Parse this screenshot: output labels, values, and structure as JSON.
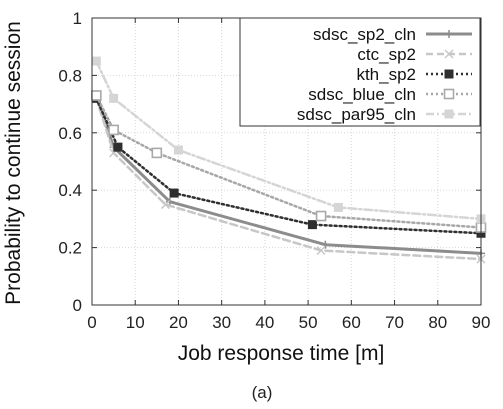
{
  "chart_data": {
    "type": "line",
    "title": "",
    "xlabel": "Job response time [m]",
    "ylabel": "Probability to continue session",
    "xlim": [
      0,
      90
    ],
    "ylim": [
      0,
      1
    ],
    "xticks": [
      0,
      10,
      20,
      30,
      40,
      50,
      60,
      70,
      80,
      90
    ],
    "yticks": [
      0,
      0.2,
      0.4,
      0.6,
      0.8,
      1
    ],
    "ytick_labels": [
      "0",
      "0.2",
      "0.4",
      "0.6",
      "0.8",
      "1"
    ],
    "grid": true,
    "legend_position": "top-right",
    "caption": "(a)",
    "series": [
      {
        "name": "sdsc_sp2_cln",
        "color": "#8c8c8c",
        "line_style": "solid",
        "marker": "plus",
        "x": [
          1,
          5,
          18,
          54,
          90
        ],
        "y": [
          0.73,
          0.55,
          0.36,
          0.21,
          0.18
        ]
      },
      {
        "name": "ctc_sp2",
        "color": "#c7c7c7",
        "line_style": "dashed",
        "marker": "x",
        "x": [
          1,
          5,
          17,
          53,
          90
        ],
        "y": [
          0.72,
          0.53,
          0.35,
          0.19,
          0.16
        ]
      },
      {
        "name": "kth_sp2",
        "color": "#2f2f2f",
        "line_style": "dotted",
        "marker": "filled-square",
        "x": [
          1,
          6,
          19,
          51,
          90
        ],
        "y": [
          0.72,
          0.55,
          0.39,
          0.28,
          0.25
        ]
      },
      {
        "name": "sdsc_blue_cln",
        "color": "#a8a8a8",
        "line_style": "dotted",
        "marker": "open-square",
        "x": [
          1,
          5,
          15,
          53,
          90
        ],
        "y": [
          0.73,
          0.61,
          0.53,
          0.31,
          0.27
        ]
      },
      {
        "name": "sdsc_par95_cln",
        "color": "#d5d5d5",
        "line_style": "dash-dot",
        "marker": "filled-square",
        "x": [
          1,
          5,
          20,
          57,
          90
        ],
        "y": [
          0.85,
          0.72,
          0.54,
          0.34,
          0.3
        ]
      }
    ]
  }
}
